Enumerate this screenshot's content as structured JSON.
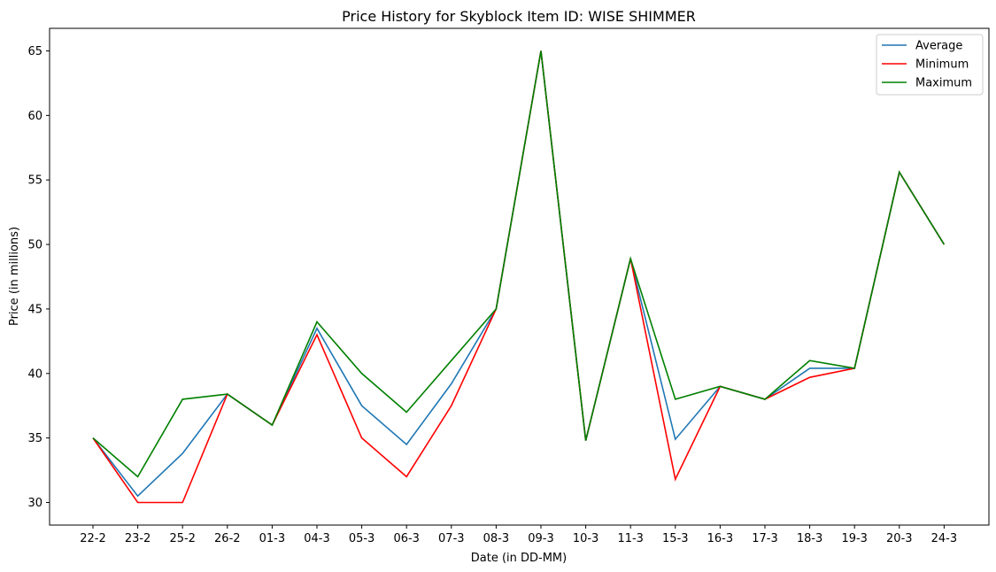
{
  "chart_data": {
    "type": "line",
    "title": "Price History for Skyblock Item ID: WISE SHIMMER",
    "xlabel": "Date (in DD-MM)",
    "ylabel": "Price (in millions)",
    "categories": [
      "22-2",
      "23-2",
      "25-2",
      "26-2",
      "01-3",
      "04-3",
      "05-3",
      "06-3",
      "07-3",
      "08-3",
      "09-3",
      "10-3",
      "11-3",
      "15-3",
      "16-3",
      "17-3",
      "18-3",
      "19-3",
      "20-3",
      "24-3"
    ],
    "yticks": [
      30,
      35,
      40,
      45,
      50,
      55,
      60,
      65
    ],
    "ylim": [
      28.25,
      66.75
    ],
    "grid": false,
    "legend_position": "top-right",
    "series": [
      {
        "name": "Average",
        "color": "#1f77b4",
        "values": [
          35,
          30.5,
          33.8,
          38.4,
          36,
          43.5,
          37.5,
          34.5,
          39.2,
          45,
          65,
          34.8,
          48.9,
          34.9,
          39,
          38,
          40.4,
          40.4,
          55.6,
          50
        ]
      },
      {
        "name": "Minimum",
        "color": "#ff0000",
        "values": [
          35,
          30,
          30,
          38.4,
          36,
          43,
          35,
          32,
          37.5,
          45,
          65,
          34.8,
          48.9,
          31.8,
          39,
          38,
          39.7,
          40.4,
          55.6,
          50
        ]
      },
      {
        "name": "Maximum",
        "color": "#008000",
        "values": [
          35,
          32,
          38,
          38.4,
          36,
          44,
          40,
          37,
          41,
          45,
          65,
          34.8,
          48.9,
          38,
          39,
          38,
          41,
          40.4,
          55.6,
          50
        ]
      }
    ]
  }
}
